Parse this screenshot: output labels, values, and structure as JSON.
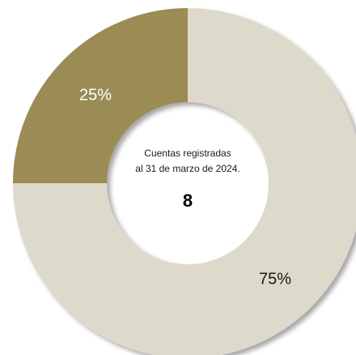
{
  "chart_data": {
    "type": "pie",
    "categories": [
      "",
      ""
    ],
    "values": [
      75,
      25
    ],
    "value_labels": [
      "75%",
      "25%"
    ],
    "colors": [
      "#dedacb",
      "#9b8c55"
    ],
    "label_colors": [
      "#1a1a1a",
      "#ffffff"
    ],
    "center_caption": [
      "Cuentas registradas",
      "al 31 de marzo de 2024."
    ],
    "center_total": "8",
    "title": "",
    "legend": "none"
  }
}
